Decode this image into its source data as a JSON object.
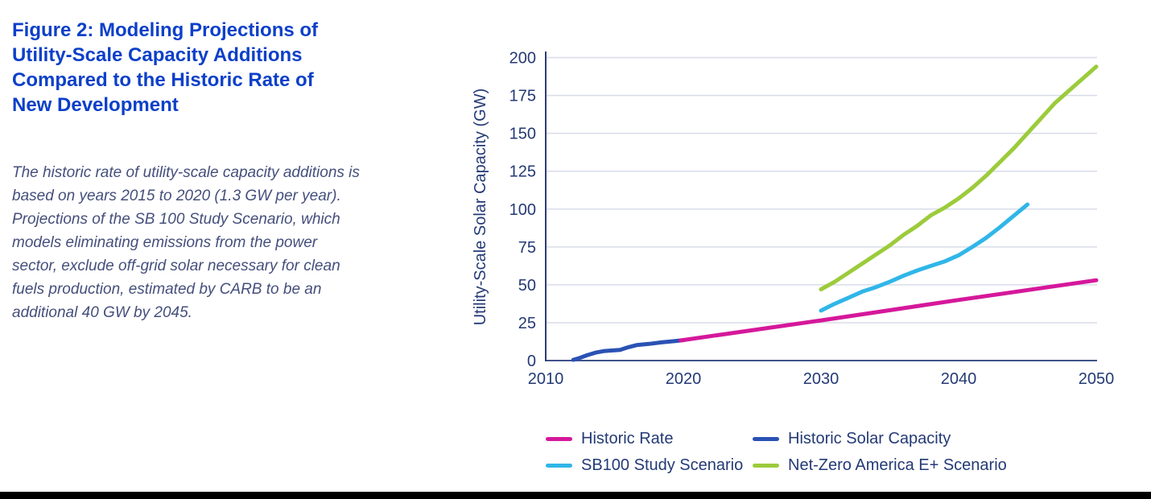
{
  "figure": {
    "title": "Figure 2: Modeling Projections of Utility-Scale Capacity Additions Compared to the Historic Rate of New Development",
    "description": "The historic rate of utility-scale capacity additions is based on years 2015 to 2020 (1.3 GW per year). Projections of the SB 100 Study Scenario, which models eliminating emissions from the power sector, exclude off-grid solar necessary for clean fuels production, estimated by CARB to be an additional 40 GW by 2045."
  },
  "colors": {
    "title_blue": "#0c40c9",
    "description_slate": "#454f7c",
    "axis_text_navy": "#243a76",
    "gridline": "#d9dde9",
    "x_axis_line": "#41538a",
    "y_axis_line": "#2c3c74",
    "footer_bar": "#000000"
  },
  "chart_data": {
    "type": "line",
    "title": "",
    "xlabel": "",
    "ylabel": "Utility-Scale Solar Capacity (GW)",
    "xlim": [
      2010,
      2050
    ],
    "ylim": [
      0,
      200
    ],
    "xticks": [
      2010,
      2020,
      2030,
      2040,
      2050
    ],
    "yticks": [
      0,
      25,
      50,
      75,
      100,
      125,
      150,
      175,
      200
    ],
    "grid": "horizontal-only",
    "legend_position": "bottom",
    "series": [
      {
        "name": "Historic Solar Capacity",
        "color": "#2a52b4",
        "points": [
          [
            2012,
            0.5
          ],
          [
            2012.4,
            1.5
          ],
          [
            2013,
            3.5
          ],
          [
            2013.6,
            5.2
          ],
          [
            2014.2,
            6.2
          ],
          [
            2015,
            6.8
          ],
          [
            2015.4,
            7.0
          ],
          [
            2016,
            8.8
          ],
          [
            2016.6,
            10.2
          ],
          [
            2017.5,
            11.0
          ],
          [
            2018.4,
            12.0
          ],
          [
            2019.4,
            12.9
          ],
          [
            2020,
            13.5
          ]
        ]
      },
      {
        "name": "Historic Rate",
        "color": "#d5189b",
        "points": [
          [
            2019.8,
            13.3
          ],
          [
            2030,
            26.5
          ],
          [
            2040,
            40
          ],
          [
            2050,
            53
          ]
        ]
      },
      {
        "name": "SB100 Study Scenario",
        "color": "#30b6e8",
        "points": [
          [
            2030,
            33
          ],
          [
            2031,
            37.5
          ],
          [
            2032,
            41.5
          ],
          [
            2033,
            45.5
          ],
          [
            2034,
            48.5
          ],
          [
            2035,
            52
          ],
          [
            2036,
            56
          ],
          [
            2037,
            59.5
          ],
          [
            2038,
            62.5
          ],
          [
            2039,
            65.5
          ],
          [
            2040,
            69.5
          ],
          [
            2041,
            75
          ],
          [
            2042,
            81
          ],
          [
            2043,
            88
          ],
          [
            2044,
            95.5
          ],
          [
            2045,
            103
          ]
        ]
      },
      {
        "name": "Net-Zero America E+ Scenario",
        "color": "#9ccb3b",
        "points": [
          [
            2030,
            47
          ],
          [
            2031,
            52
          ],
          [
            2032,
            58
          ],
          [
            2033,
            64
          ],
          [
            2034,
            70
          ],
          [
            2035,
            76
          ],
          [
            2036,
            83
          ],
          [
            2037,
            89
          ],
          [
            2038,
            96
          ],
          [
            2039,
            101
          ],
          [
            2040,
            107
          ],
          [
            2041,
            114
          ],
          [
            2042,
            122
          ],
          [
            2043,
            131
          ],
          [
            2044,
            140
          ],
          [
            2045,
            150
          ],
          [
            2046,
            160
          ],
          [
            2047,
            170
          ],
          [
            2048,
            178
          ],
          [
            2049,
            186
          ],
          [
            2050,
            194
          ]
        ]
      }
    ],
    "legend": [
      {
        "label": "Historic Rate",
        "color": "#d5189b"
      },
      {
        "label": "Historic Solar Capacity",
        "color": "#2a52b4"
      },
      {
        "label": "SB100 Study Scenario",
        "color": "#30b6e8"
      },
      {
        "label": "Net-Zero America E+ Scenario",
        "color": "#9ccb3b"
      }
    ]
  }
}
